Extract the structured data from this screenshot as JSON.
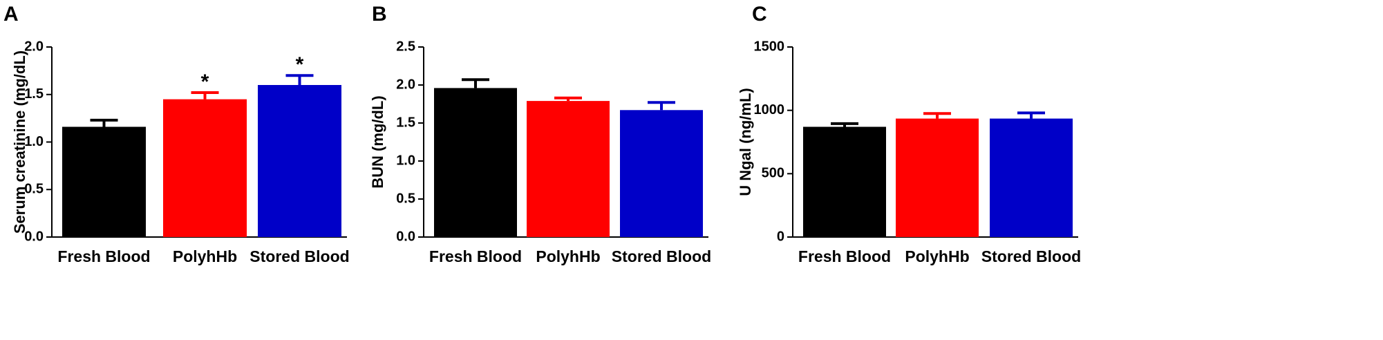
{
  "chart_data": [
    {
      "type": "bar",
      "panel": "A",
      "ylabel": "Serum creatinine (mg/dL)",
      "categories": [
        "Fresh Blood",
        "PolyhHb",
        "Stored Blood"
      ],
      "values": [
        1.16,
        1.45,
        1.6
      ],
      "errors": [
        0.07,
        0.07,
        0.1
      ],
      "annotations": [
        "",
        "*",
        "*"
      ],
      "ylim": [
        0,
        2.0
      ],
      "yticks": [
        0,
        0.5,
        1.0,
        1.5,
        2.0
      ],
      "ytick_labels": [
        "0.0",
        "0.5",
        "1.0",
        "1.5",
        "2.0"
      ],
      "colors": [
        "#000000",
        "#ff0000",
        "#0000c8"
      ],
      "grid": false
    },
    {
      "type": "bar",
      "panel": "B",
      "ylabel": "BUN  (mg/dL)",
      "categories": [
        "Fresh Blood",
        "PolyhHb",
        "Stored Blood"
      ],
      "values": [
        1.96,
        1.79,
        1.67
      ],
      "errors": [
        0.11,
        0.04,
        0.1
      ],
      "annotations": [
        "",
        "",
        ""
      ],
      "ylim": [
        0,
        2.5
      ],
      "yticks": [
        0,
        0.5,
        1.0,
        1.5,
        2.0,
        2.5
      ],
      "ytick_labels": [
        "0.0",
        "0.5",
        "1.0",
        "1.5",
        "2.0",
        "2.5"
      ],
      "colors": [
        "#000000",
        "#ff0000",
        "#0000c8"
      ],
      "grid": false
    },
    {
      "type": "bar",
      "panel": "C",
      "ylabel": "U Ngal (ng/mL)",
      "categories": [
        "Fresh Blood",
        "PolyhHb",
        "Stored Blood"
      ],
      "values": [
        870,
        935,
        935
      ],
      "errors": [
        25,
        40,
        45
      ],
      "annotations": [
        "",
        "",
        ""
      ],
      "ylim": [
        0,
        1500
      ],
      "yticks": [
        0,
        500,
        1000,
        1500
      ],
      "ytick_labels": [
        "0",
        "500",
        "1000",
        "1500"
      ],
      "colors": [
        "#000000",
        "#ff0000",
        "#0000c8"
      ],
      "grid": false
    }
  ]
}
